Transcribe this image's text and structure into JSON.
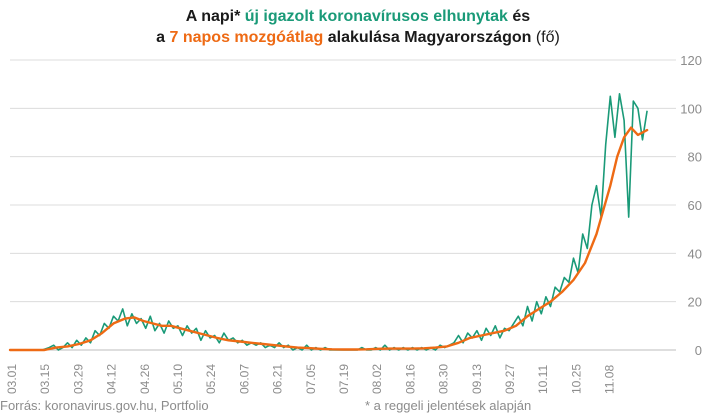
{
  "title": {
    "line1_a": "A napi* ",
    "line1_b": "új igazolt koronavírusos elhunytak",
    "line1_c": " és",
    "line2_a": "a ",
    "line2_b": "7 napos mozgóátlag",
    "line2_c": " alakulása Magyarországon",
    "line2_d": " (fő)"
  },
  "footer": {
    "source": "Forrás: koronavirus.gov.hu, Portfolio",
    "note": "* a reggeli jelentések alapján"
  },
  "colors": {
    "daily": "#1a9a78",
    "avg": "#ee6a14",
    "grid": "#dcdcdc",
    "axis_text": "#8c8c8c"
  },
  "chart_data": {
    "type": "line",
    "x_tick_labels": [
      "03.01",
      "03.15",
      "03.29",
      "04.12",
      "04.26",
      "05.10",
      "05.24",
      "06.07",
      "06.21",
      "07.05",
      "07.19",
      "08.02",
      "08.16",
      "08.30",
      "09.13",
      "09.27",
      "10.11",
      "10.25",
      "11.08"
    ],
    "y_ticks": [
      0,
      20,
      40,
      60,
      80,
      100,
      120
    ],
    "ylim": [
      0,
      120
    ],
    "x_day_range": [
      0,
      263
    ],
    "series": [
      {
        "name": "új igazolt koronavírusos elhunytak",
        "key": "daily",
        "points": [
          [
            0,
            0
          ],
          [
            14,
            0
          ],
          [
            17,
            1
          ],
          [
            19,
            2
          ],
          [
            21,
            0
          ],
          [
            23,
            1
          ],
          [
            25,
            3
          ],
          [
            27,
            1
          ],
          [
            29,
            4
          ],
          [
            31,
            2
          ],
          [
            33,
            5
          ],
          [
            35,
            3
          ],
          [
            37,
            8
          ],
          [
            39,
            6
          ],
          [
            41,
            11
          ],
          [
            43,
            9
          ],
          [
            45,
            14
          ],
          [
            47,
            12
          ],
          [
            49,
            17
          ],
          [
            51,
            10
          ],
          [
            53,
            15
          ],
          [
            55,
            11
          ],
          [
            57,
            13
          ],
          [
            59,
            9
          ],
          [
            61,
            14
          ],
          [
            63,
            8
          ],
          [
            65,
            11
          ],
          [
            67,
            7
          ],
          [
            69,
            12
          ],
          [
            71,
            9
          ],
          [
            73,
            10
          ],
          [
            75,
            6
          ],
          [
            77,
            10
          ],
          [
            79,
            7
          ],
          [
            81,
            9
          ],
          [
            83,
            4
          ],
          [
            85,
            8
          ],
          [
            87,
            5
          ],
          [
            89,
            6
          ],
          [
            91,
            3
          ],
          [
            93,
            7
          ],
          [
            95,
            4
          ],
          [
            97,
            5
          ],
          [
            99,
            3
          ],
          [
            101,
            4
          ],
          [
            103,
            2
          ],
          [
            105,
            3
          ],
          [
            107,
            2
          ],
          [
            109,
            3
          ],
          [
            111,
            1
          ],
          [
            113,
            2
          ],
          [
            115,
            1
          ],
          [
            117,
            3
          ],
          [
            119,
            1
          ],
          [
            121,
            2
          ],
          [
            123,
            0
          ],
          [
            125,
            1
          ],
          [
            127,
            0
          ],
          [
            129,
            2
          ],
          [
            131,
            0
          ],
          [
            133,
            1
          ],
          [
            135,
            0
          ],
          [
            137,
            1
          ],
          [
            139,
            0
          ],
          [
            141,
            0
          ],
          [
            143,
            0
          ],
          [
            145,
            0
          ],
          [
            147,
            0
          ],
          [
            149,
            0
          ],
          [
            151,
            0
          ],
          [
            153,
            1
          ],
          [
            155,
            0
          ],
          [
            157,
            0
          ],
          [
            159,
            1
          ],
          [
            161,
            0
          ],
          [
            163,
            2
          ],
          [
            165,
            0
          ],
          [
            167,
            1
          ],
          [
            169,
            0
          ],
          [
            171,
            1
          ],
          [
            173,
            0
          ],
          [
            175,
            1
          ],
          [
            177,
            0
          ],
          [
            179,
            1
          ],
          [
            181,
            0
          ],
          [
            183,
            1
          ],
          [
            185,
            0
          ],
          [
            187,
            2
          ],
          [
            189,
            1
          ],
          [
            191,
            2
          ],
          [
            193,
            3
          ],
          [
            195,
            6
          ],
          [
            197,
            3
          ],
          [
            199,
            7
          ],
          [
            201,
            5
          ],
          [
            203,
            8
          ],
          [
            205,
            4
          ],
          [
            207,
            9
          ],
          [
            209,
            6
          ],
          [
            211,
            10
          ],
          [
            213,
            5
          ],
          [
            215,
            9
          ],
          [
            217,
            8
          ],
          [
            219,
            11
          ],
          [
            221,
            14
          ],
          [
            223,
            10
          ],
          [
            225,
            18
          ],
          [
            227,
            12
          ],
          [
            229,
            20
          ],
          [
            231,
            15
          ],
          [
            233,
            22
          ],
          [
            235,
            18
          ],
          [
            237,
            26
          ],
          [
            239,
            24
          ],
          [
            241,
            30
          ],
          [
            243,
            28
          ],
          [
            245,
            38
          ],
          [
            247,
            32
          ],
          [
            249,
            48
          ],
          [
            251,
            42
          ],
          [
            253,
            60
          ],
          [
            255,
            68
          ],
          [
            257,
            55
          ],
          [
            259,
            85
          ],
          [
            261,
            105
          ],
          [
            263,
            88
          ],
          [
            265,
            106
          ],
          [
            267,
            95
          ],
          [
            269,
            55
          ],
          [
            271,
            103
          ],
          [
            273,
            100
          ],
          [
            275,
            87
          ],
          [
            277,
            99
          ]
        ]
      },
      {
        "name": "7 napos mozgóátlag",
        "key": "avg",
        "points": [
          [
            0,
            0
          ],
          [
            15,
            0
          ],
          [
            20,
            1
          ],
          [
            25,
            1.5
          ],
          [
            30,
            2.5
          ],
          [
            35,
            4
          ],
          [
            40,
            7
          ],
          [
            45,
            11
          ],
          [
            50,
            13
          ],
          [
            54,
            13.5
          ],
          [
            58,
            12
          ],
          [
            62,
            11
          ],
          [
            66,
            10
          ],
          [
            70,
            10
          ],
          [
            74,
            9
          ],
          [
            78,
            8
          ],
          [
            82,
            7
          ],
          [
            86,
            6
          ],
          [
            90,
            5
          ],
          [
            95,
            4
          ],
          [
            100,
            3.5
          ],
          [
            105,
            3
          ],
          [
            110,
            2.5
          ],
          [
            115,
            2
          ],
          [
            120,
            1.5
          ],
          [
            125,
            1
          ],
          [
            130,
            0.8
          ],
          [
            135,
            0.5
          ],
          [
            140,
            0.3
          ],
          [
            145,
            0.2
          ],
          [
            150,
            0.2
          ],
          [
            155,
            0.3
          ],
          [
            160,
            0.5
          ],
          [
            165,
            0.6
          ],
          [
            170,
            0.6
          ],
          [
            175,
            0.6
          ],
          [
            180,
            0.7
          ],
          [
            185,
            1
          ],
          [
            190,
            1.5
          ],
          [
            195,
            3
          ],
          [
            200,
            5
          ],
          [
            205,
            6
          ],
          [
            210,
            7
          ],
          [
            215,
            8
          ],
          [
            220,
            10
          ],
          [
            225,
            14
          ],
          [
            230,
            17
          ],
          [
            235,
            20
          ],
          [
            240,
            24
          ],
          [
            245,
            29
          ],
          [
            250,
            36
          ],
          [
            255,
            48
          ],
          [
            258,
            58
          ],
          [
            261,
            68
          ],
          [
            264,
            80
          ],
          [
            267,
            88
          ],
          [
            270,
            92
          ],
          [
            273,
            89
          ],
          [
            277,
            91
          ]
        ]
      }
    ]
  }
}
